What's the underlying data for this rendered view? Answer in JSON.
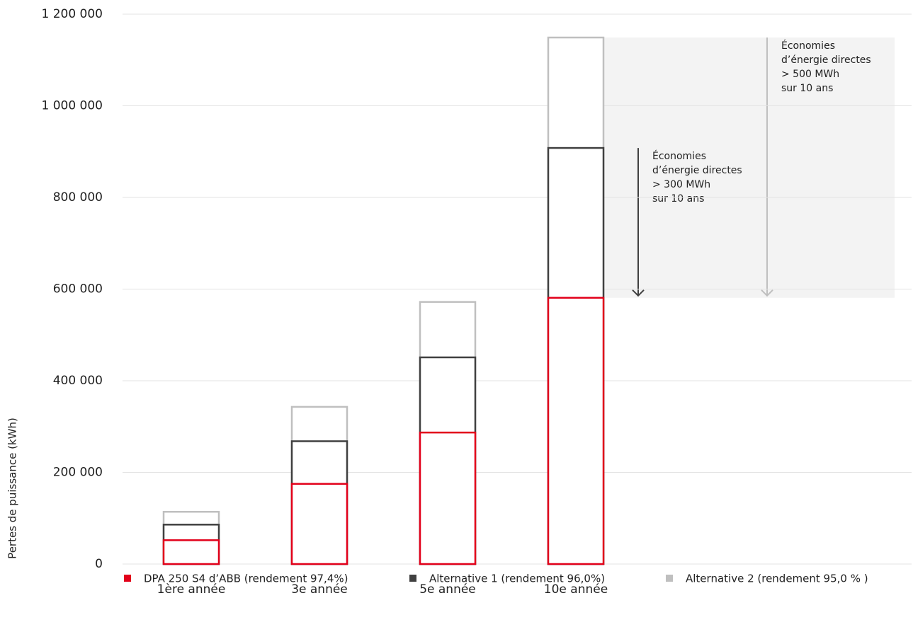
{
  "chart_data": {
    "type": "bar",
    "y_label": "Pertes de puissance (kWh)",
    "categories": [
      "1ère année",
      "3e année",
      "5e année",
      "10e année"
    ],
    "series": [
      {
        "name": "DPA 250 S4 d’ABB (rendement 97,4%)",
        "color": "#e2001a",
        "values": [
          52000,
          175000,
          287000,
          581000
        ]
      },
      {
        "name": "Alternative 1 (rendement 96,0%)",
        "color": "#404040",
        "values": [
          86000,
          268000,
          451000,
          908000
        ]
      },
      {
        "name": "Alternative 2 (rendement 95,0 % )",
        "color": "#bfbfbf",
        "values": [
          114000,
          343000,
          572000,
          1149000
        ]
      }
    ],
    "ylim": [
      0,
      1200000
    ],
    "yticks": [
      0,
      {
        "value": 200000,
        "label": "200 000"
      },
      {
        "value": 400000,
        "label": "400 000"
      },
      {
        "value": 600000,
        "label": "600 000"
      },
      {
        "value": 800000,
        "label": "800 000"
      },
      {
        "value": 1000000,
        "label": "1 000 000"
      },
      {
        "value": 1200000,
        "label": "1 200 000"
      }
    ],
    "grid": true,
    "legend": "bottom",
    "annotations": [
      {
        "lines": [
          "Économies",
          "d’énergie directes",
          "> 300 MWh",
          "sur 10 ans"
        ]
      },
      {
        "lines": [
          "Économies",
          "d’énergie directes",
          "> 500 MWh",
          "sur 10 ans"
        ]
      }
    ]
  }
}
